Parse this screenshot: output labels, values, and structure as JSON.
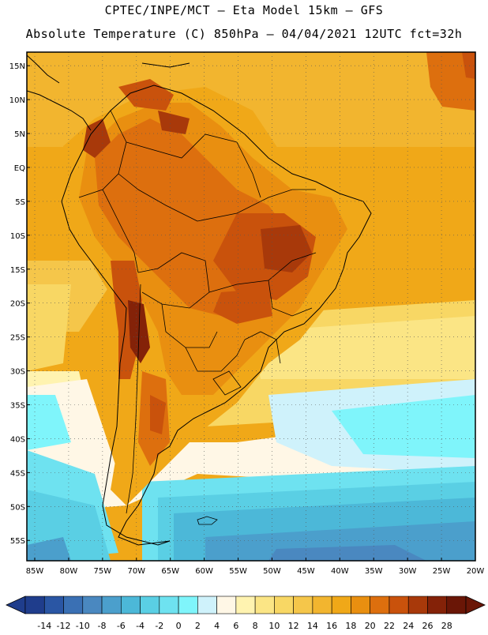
{
  "header": {
    "line1": "CPTEC/INPE/MCT –  Eta Model 15km – GFS",
    "line2": "Absolute Temperature (C) 850hPa – 04/04/2021 12UTC fct=32h"
  },
  "axes": {
    "lat_labels": [
      "15N",
      "10N",
      "5N",
      "EQ",
      "5S",
      "10S",
      "15S",
      "20S",
      "25S",
      "30S",
      "35S",
      "40S",
      "45S",
      "50S",
      "55S"
    ],
    "lon_labels": [
      "85W",
      "80W",
      "75W",
      "70W",
      "65W",
      "60W",
      "55W",
      "50W",
      "45W",
      "40W",
      "35W",
      "30W",
      "25W",
      "20W"
    ]
  },
  "colorbar": {
    "labels": [
      "-14",
      "-12",
      "-10",
      "-8",
      "-6",
      "-4",
      "-2",
      "0",
      "2",
      "4",
      "6",
      "8",
      "10",
      "12",
      "14",
      "16",
      "18",
      "20",
      "22",
      "24",
      "26",
      "28"
    ],
    "colors": [
      "#1f3d8c",
      "#2a56a4",
      "#3a70b4",
      "#4a88c0",
      "#4b9fcc",
      "#4cb8d8",
      "#5acfe4",
      "#6ee2f0",
      "#7ff5fb",
      "#cff2fb",
      "#fff7e6",
      "#fff3b0",
      "#fbe585",
      "#f8d764",
      "#f5c64a",
      "#f2b52f",
      "#f0a818",
      "#e98f10",
      "#dd6f0e",
      "#c9520c",
      "#a8390a",
      "#842208",
      "#6a1606"
    ]
  }
}
